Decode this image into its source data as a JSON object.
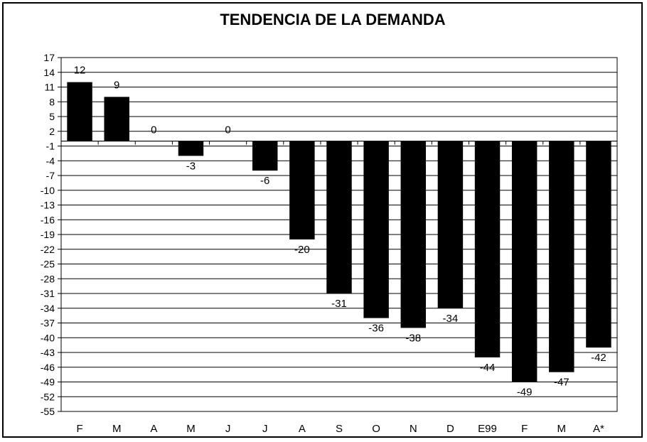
{
  "chart_data": {
    "type": "bar",
    "title": "TENDENCIA DE LA DEMANDA",
    "xlabel": "",
    "ylabel": "",
    "categories": [
      "F",
      "M",
      "A",
      "M",
      "J",
      "J",
      "A",
      "S",
      "O",
      "N",
      "D",
      "E99",
      "F",
      "M",
      "A*"
    ],
    "values": [
      12,
      9,
      0,
      -3,
      0,
      -6,
      -20,
      -31,
      -36,
      -38,
      -34,
      -44,
      -49,
      -47,
      -42
    ],
    "ylim": [
      -55,
      17
    ],
    "yticks": [
      17,
      14,
      11,
      8,
      5,
      2,
      -1,
      -4,
      -7,
      -10,
      -13,
      -16,
      -19,
      -22,
      -25,
      -28,
      -31,
      -34,
      -37,
      -40,
      -43,
      -46,
      -49,
      -52,
      -55
    ],
    "grid": true,
    "legend": "none",
    "bar_color": "#000000"
  }
}
